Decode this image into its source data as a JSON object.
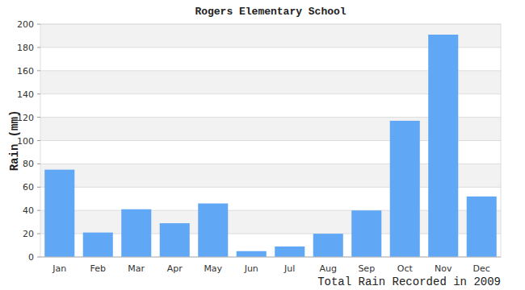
{
  "chart_data": {
    "type": "bar",
    "title": "Rogers Elementary School",
    "x_label": "Total Rain Recorded in 2009",
    "y_label": "Rain (mm)",
    "categories": [
      "Jan",
      "Feb",
      "Mar",
      "Apr",
      "May",
      "Jun",
      "Jul",
      "Aug",
      "Sep",
      "Oct",
      "Nov",
      "Dec"
    ],
    "values": [
      75,
      21,
      41,
      29,
      46,
      5,
      9,
      20,
      40,
      117,
      191,
      52
    ],
    "color": "#60a8f5",
    "ylim": [
      0,
      200
    ],
    "yticks": [
      0,
      20,
      40,
      60,
      80,
      100,
      120,
      140,
      160,
      180,
      200
    ],
    "grid": true
  }
}
